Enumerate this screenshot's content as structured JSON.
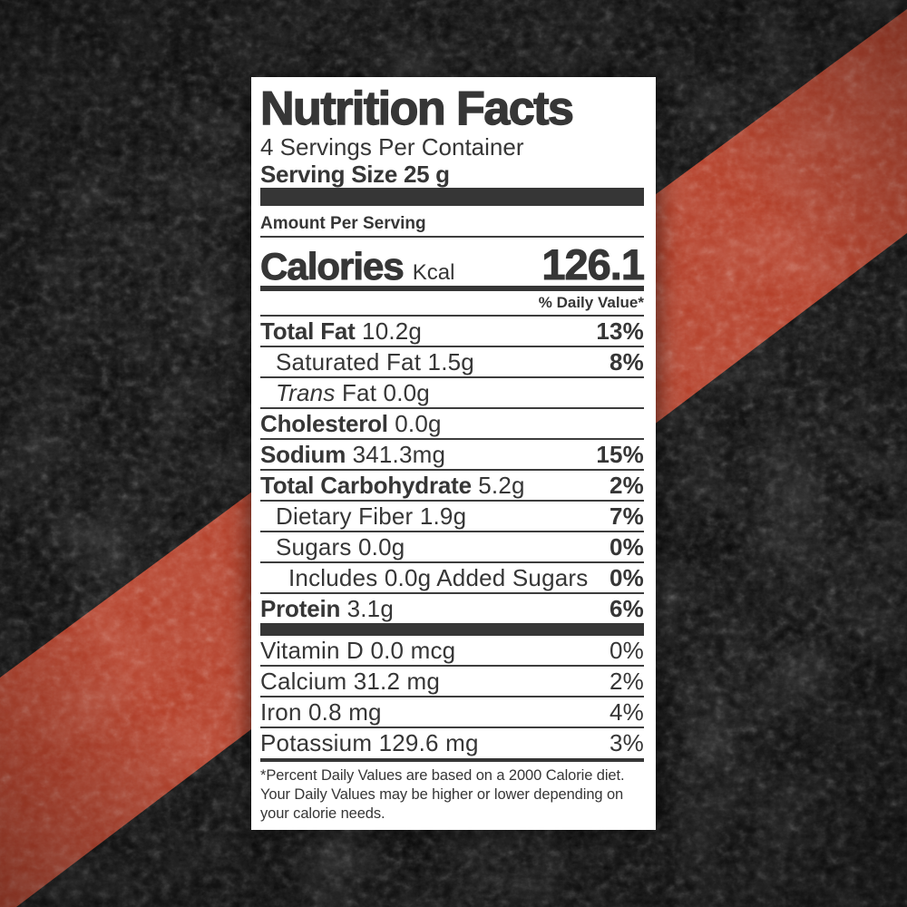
{
  "colors": {
    "background": "#070707",
    "stripe": "#b23a23",
    "ink": "#363636",
    "label_background": "#ffffff"
  },
  "label": {
    "title": "Nutrition Facts",
    "servings_per_container": "4 Servings Per Container",
    "serving_size": "Serving Size 25 g",
    "amount_per_serving": "Amount Per Serving",
    "calories": {
      "label": "Calories",
      "unit": "Kcal",
      "value": "126.1"
    },
    "daily_value_header": "% Daily Value*",
    "nutrients": [
      {
        "bold": "Total Fat",
        "italic": "",
        "rest": "10.2g",
        "dv": "13%",
        "indent": 0
      },
      {
        "bold": "",
        "italic": "",
        "rest": "Saturated Fat 1.5g",
        "dv": "8%",
        "indent": 1
      },
      {
        "bold": "",
        "italic": "Trans",
        "rest": "Fat 0.0g",
        "dv": "",
        "indent": 1
      },
      {
        "bold": "Cholesterol",
        "italic": "",
        "rest": "0.0g",
        "dv": "",
        "indent": 0
      },
      {
        "bold": "Sodium",
        "italic": "",
        "rest": "341.3mg",
        "dv": "15%",
        "indent": 0
      },
      {
        "bold": "Total Carbohydrate",
        "italic": "",
        "rest": "5.2g",
        "dv": "2%",
        "indent": 0
      },
      {
        "bold": "",
        "italic": "",
        "rest": "Dietary Fiber 1.9g",
        "dv": "7%",
        "indent": 1
      },
      {
        "bold": "",
        "italic": "",
        "rest": "Sugars 0.0g",
        "dv": "0%",
        "indent": 1
      },
      {
        "bold": "",
        "italic": "",
        "rest": "Includes 0.0g Added Sugars",
        "dv": "0%",
        "indent": 2
      },
      {
        "bold": "Protein",
        "italic": "",
        "rest": "3.1g",
        "dv": "6%",
        "indent": 0
      }
    ],
    "micronutrients": [
      {
        "text": "Vitamin D 0.0 mcg",
        "dv": "0%"
      },
      {
        "text": "Calcium 31.2 mg",
        "dv": "2%"
      },
      {
        "text": "Iron 0.8 mg",
        "dv": "4%"
      },
      {
        "text": "Potassium 129.6 mg",
        "dv": "3%"
      }
    ],
    "footnote": "*Percent Daily Values are based on a 2000 Calorie diet. Your Daily Values may be higher or lower depending on your calorie needs."
  }
}
